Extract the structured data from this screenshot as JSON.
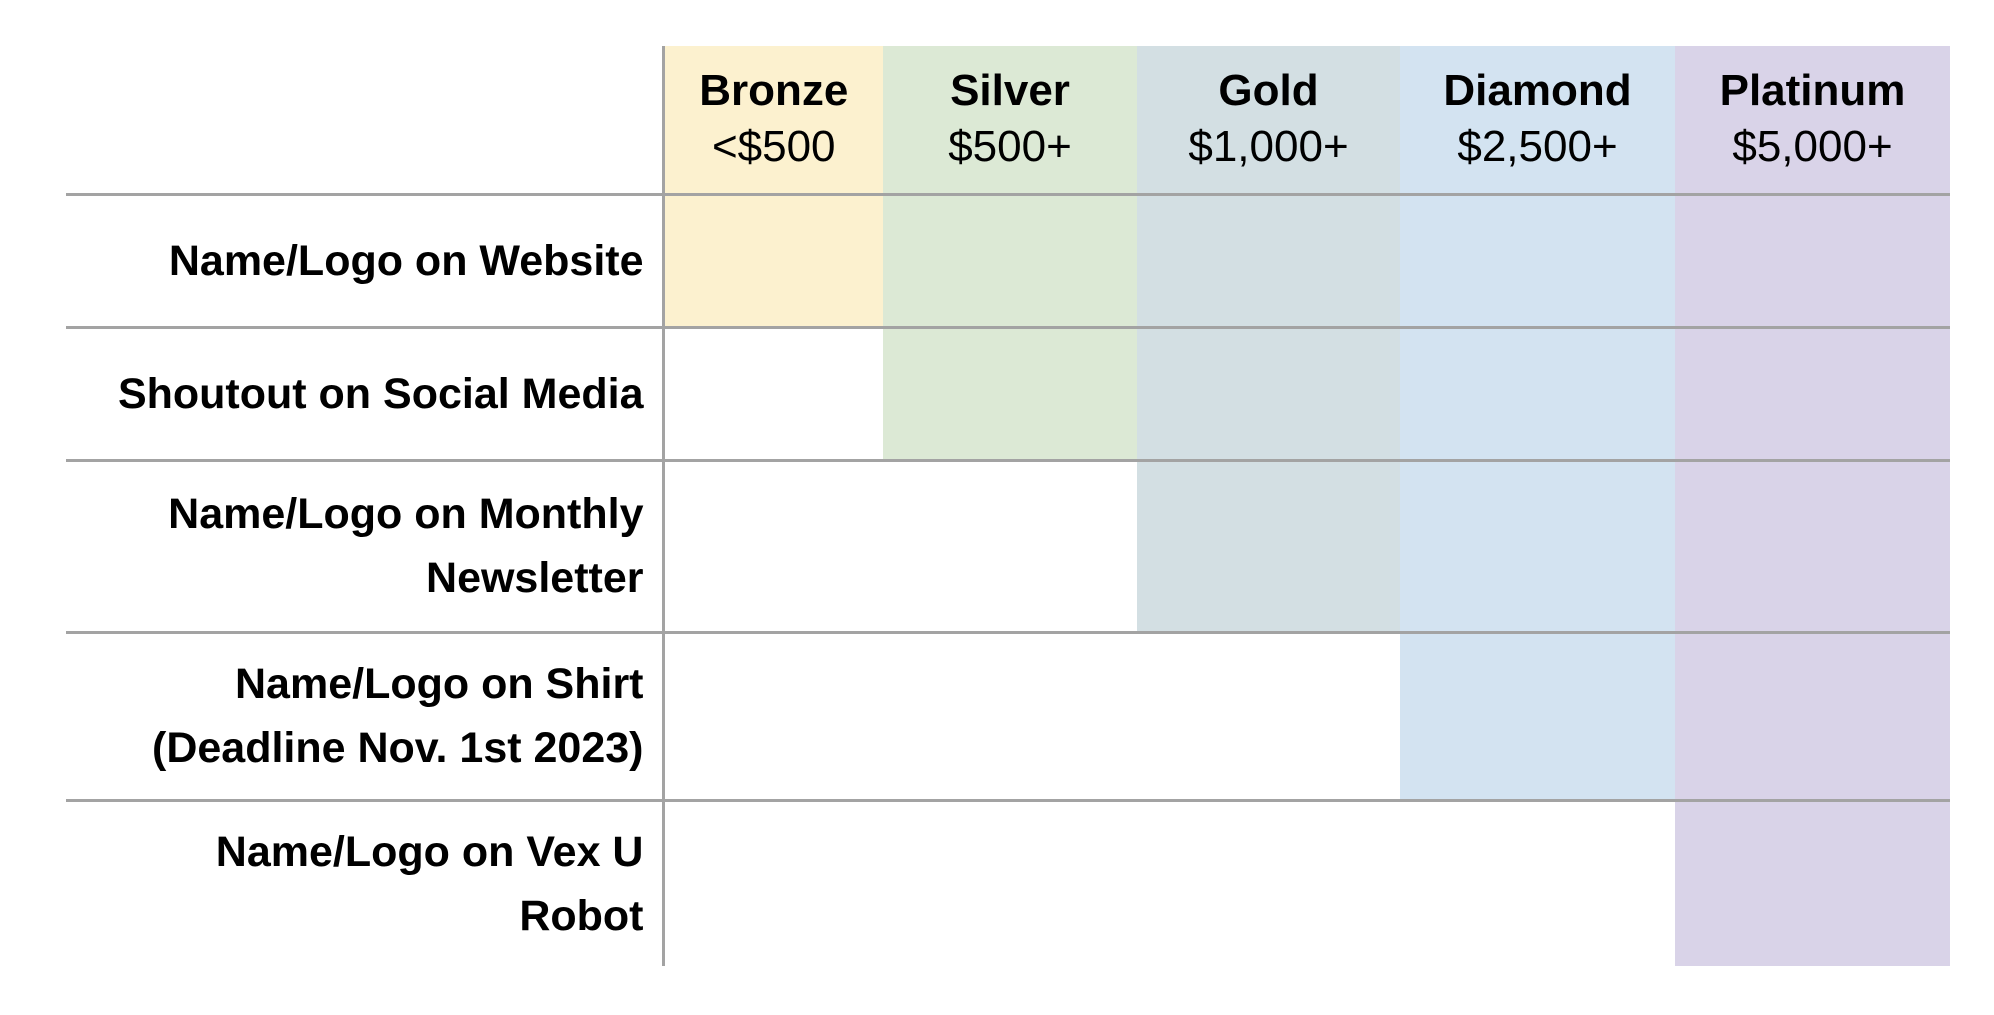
{
  "tiers": [
    {
      "name": "Bronze",
      "price": "<$500",
      "color": "#fcf1cf"
    },
    {
      "name": "Silver",
      "price": "$500+",
      "color": "#dce9d5"
    },
    {
      "name": "Gold",
      "price": "$1,000+",
      "color": "#d3dfe3"
    },
    {
      "name": "Diamond",
      "price": "$2,500+",
      "color": "#d3e3f1"
    },
    {
      "name": "Platinum",
      "price": "$5,000+",
      "color": "#d9d3e8"
    }
  ],
  "benefits": [
    {
      "label_lines": [
        "Name/Logo on Website"
      ],
      "min_tier": "Bronze"
    },
    {
      "label_lines": [
        "Shoutout on Social Media"
      ],
      "min_tier": "Silver"
    },
    {
      "label_lines": [
        "Name/Logo on Monthly",
        "Newsletter"
      ],
      "min_tier": "Gold"
    },
    {
      "label_lines": [
        "Name/Logo on Shirt",
        "(Deadline Nov. 1st 2023)"
      ],
      "min_tier": "Diamond"
    },
    {
      "label_lines": [
        "Name/Logo on Vex U",
        "Robot"
      ],
      "min_tier": "Platinum"
    }
  ]
}
